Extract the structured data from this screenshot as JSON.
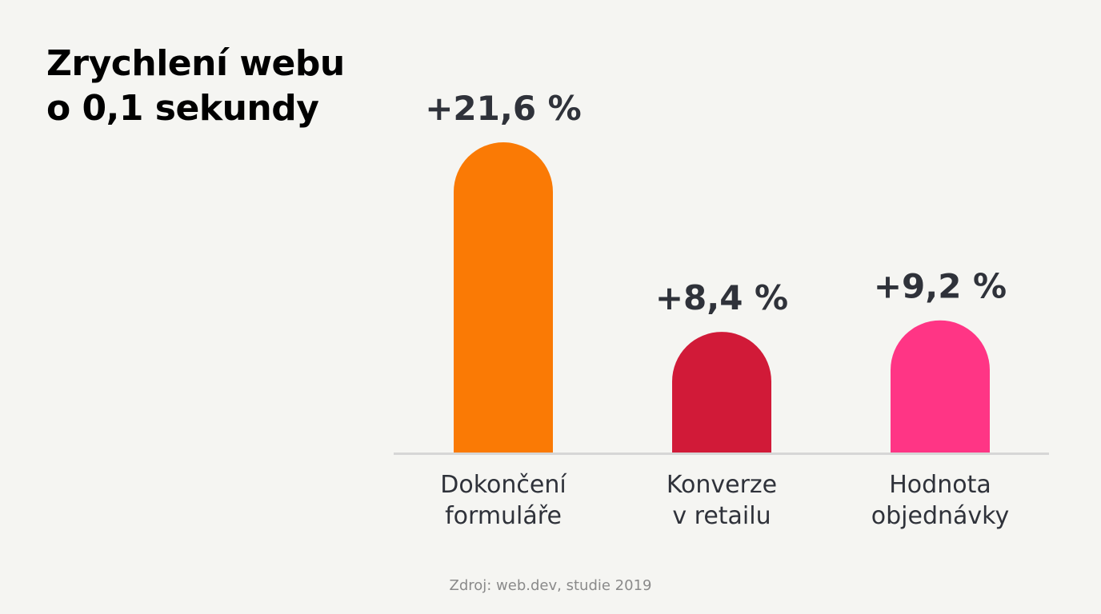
{
  "title_lines": [
    "Zrychlení webu",
    "o 0,1 sekundy"
  ],
  "source": "Zdroj: web.dev, studie 2019",
  "chart_data": {
    "type": "bar",
    "categories": [
      [
        "Dokončení",
        "formuláře"
      ],
      [
        "Konverze",
        "v retailu"
      ],
      [
        "Hodnota",
        "objednávky"
      ]
    ],
    "values": [
      21.6,
      8.4,
      9.2
    ],
    "value_labels": [
      "+21,6 %",
      "+8,4 %",
      "+9,2 %"
    ],
    "colors": [
      "#fa7a05",
      "#d11a38",
      "#ff3585"
    ],
    "unit": "%",
    "grid": false,
    "legend": "none"
  }
}
